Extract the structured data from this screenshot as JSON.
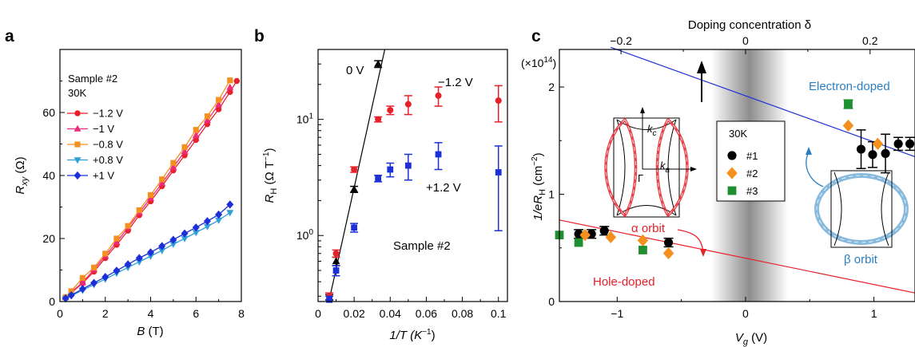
{
  "figure": {
    "panel_letters": [
      "a",
      "b",
      "c"
    ]
  },
  "chart_data": [
    {
      "panel": "a",
      "type": "line",
      "xlabel_var": "B",
      "xlabel_unit": " (T)",
      "ylabel_var": "R",
      "ylabel_sub": "xy",
      "ylabel_unit": " (Ω)",
      "xlim": [
        0,
        8
      ],
      "ylim": [
        0,
        80
      ],
      "xticks": [
        0,
        2,
        4,
        6,
        8
      ],
      "yticks": [
        0,
        20,
        40,
        60
      ],
      "legend_title": [
        "Sample #2",
        "30K"
      ],
      "legend_position": "top-left",
      "series": [
        {
          "name": "−1.2 V",
          "color": "#e8202a",
          "marker": "circle",
          "x": [
            0.25,
            0.5,
            1,
            1.5,
            2,
            2.5,
            3,
            3.5,
            4,
            4.5,
            5,
            5.5,
            6,
            6.5,
            7,
            7.5,
            7.8
          ],
          "y": [
            1.3,
            2.8,
            5.8,
            9.5,
            13.8,
            18,
            22.5,
            27.4,
            31.8,
            36.6,
            41.6,
            46.4,
            51.3,
            56.3,
            61,
            66.5,
            70
          ]
        },
        {
          "name": "−1 V",
          "color": "#ee2a7b",
          "marker": "triangle-up",
          "x": [
            0.25,
            0.5,
            1,
            1.5,
            2,
            2.5,
            3,
            3.5,
            4,
            4.5,
            5,
            5.5,
            6,
            6.5,
            7,
            7.5
          ],
          "y": [
            1.3,
            3,
            6,
            10.2,
            14.5,
            18.8,
            23.5,
            28.2,
            32.8,
            37.5,
            42.6,
            47.6,
            52.7,
            57.5,
            62.5,
            68
          ]
        },
        {
          "name": "−0.8 V",
          "color": "#f4901e",
          "marker": "square",
          "x": [
            0.25,
            0.5,
            1,
            1.5,
            2,
            2.5,
            3,
            3.5,
            4,
            4.5,
            5,
            5.5,
            6,
            6.5,
            7,
            7.5
          ],
          "y": [
            1.4,
            3.3,
            7.5,
            10.8,
            15.2,
            20,
            24,
            29,
            33.8,
            38.8,
            44,
            49,
            54.5,
            58.8,
            64,
            70.2
          ]
        },
        {
          "name": "+0.8 V",
          "color": "#2f9fd8",
          "marker": "triangle-down",
          "x": [
            0.25,
            0.5,
            1,
            1.5,
            2,
            2.5,
            3,
            3.5,
            4,
            4.5,
            5,
            5.5,
            6,
            6.5,
            7,
            7.5
          ],
          "y": [
            0.9,
            1.8,
            3.6,
            5.4,
            7.1,
            9,
            10.8,
            12.6,
            14.4,
            16.2,
            18.2,
            20,
            21.9,
            23.8,
            25.8,
            28.2
          ]
        },
        {
          "name": "+1 V",
          "color": "#1d2fd6",
          "marker": "diamond",
          "x": [
            0.25,
            0.5,
            1,
            1.5,
            2,
            2.5,
            3,
            3.5,
            4,
            4.5,
            5,
            5.5,
            6,
            6.5,
            7,
            7.5
          ],
          "y": [
            1,
            2,
            4,
            5.9,
            7.8,
            9.8,
            11.8,
            13.8,
            15.6,
            17.6,
            19.6,
            21.6,
            23.5,
            25.5,
            27.6,
            30.8
          ]
        }
      ]
    },
    {
      "panel": "b",
      "type": "scatter",
      "xlabel": "1/T (K",
      "xlabel_sup": "−1",
      "xlabel_tail": ")",
      "ylabel_var": "R",
      "ylabel_sub": "H",
      "ylabel_unit": " (Ω T",
      "ylabel_sup": "−1",
      "ylabel_tail": ")",
      "xlim": [
        0,
        0.105
      ],
      "ylim_log": [
        0.27,
        40
      ],
      "yscale": "log",
      "xticks": [
        0,
        0.02,
        0.04,
        0.06,
        0.08,
        0.1
      ],
      "xtick_labels": [
        "0",
        "0.02",
        "0.04",
        "0.06",
        "0.08",
        "0.1"
      ],
      "yticks_major": [
        1,
        10
      ],
      "ytick_labels": [
        {
          "base": "10",
          "exp": "0"
        },
        {
          "base": "10",
          "exp": "1"
        }
      ],
      "annotations": {
        "zero": "0 V",
        "neg": "−1.2 V",
        "pos": "+1.2 V",
        "sample": "Sample #2"
      },
      "fit_line": {
        "x": [
          0.006,
          0.037
        ],
        "y": [
          0.27,
          40
        ]
      },
      "series": [
        {
          "name": "0 V",
          "color": "#000000",
          "marker": "triangle-up",
          "x": [
            0.00625,
            0.01,
            0.02,
            0.0333
          ],
          "y": [
            0.29,
            0.6,
            2.5,
            30
          ],
          "err": [
            0.02,
            0.05,
            0.15,
            2
          ]
        },
        {
          "name": "−1.2 V",
          "color": "#e8202a",
          "marker": "circle",
          "x": [
            0.00625,
            0.01,
            0.02,
            0.0333,
            0.04,
            0.05,
            0.0667,
            0.1
          ],
          "y": [
            0.3,
            0.7,
            3.7,
            10,
            12,
            13.5,
            16,
            14.5
          ],
          "err": [
            0.02,
            0.05,
            0.2,
            0.5,
            1,
            2.5,
            3,
            5
          ]
        },
        {
          "name": "+1.2 V",
          "color": "#1d2fd6",
          "marker": "square",
          "x": [
            0.00625,
            0.01,
            0.02,
            0.0333,
            0.04,
            0.05,
            0.0667,
            0.1
          ],
          "y": [
            0.28,
            0.5,
            1.17,
            3.1,
            3.7,
            4,
            5,
            3.5
          ],
          "err": [
            0.02,
            0.05,
            0.1,
            0.2,
            0.5,
            1,
            1.3,
            2.4
          ]
        }
      ]
    },
    {
      "panel": "c",
      "type": "scatter",
      "xlabel_var": "V",
      "xlabel_sub": "g",
      "xlabel_unit": " (V)",
      "ylabel": "1/eR",
      "ylabel_sub": "H",
      "ylabel_unit": " (cm",
      "ylabel_sup": "−2",
      "ylabel_tail": ")",
      "ymultiplier": "(×10",
      "ymultiplier_sup": "14",
      "ymultiplier_tail": ")",
      "top_label": "Doping concentration δ",
      "xlim": [
        -1.45,
        1.32
      ],
      "ylim": [
        0,
        2.35
      ],
      "xticks": [
        -1,
        0,
        1
      ],
      "xtick_labels": [
        "−1",
        "0",
        "1"
      ],
      "yticks": [
        0,
        1,
        2
      ],
      "top_ticks": [
        -0.2,
        0,
        0.2
      ],
      "top_tick_labels": [
        "−0.2",
        "0",
        "0.2"
      ],
      "legend_title": "30K",
      "annotations": {
        "electron": "Electron-doped",
        "hole": "Hole-doped",
        "alpha": "α orbit",
        "beta": "β orbit",
        "kc": "k",
        "kc_sub": "c",
        "ka": "k",
        "ka_sub": "a",
        "gamma": "Γ"
      },
      "electron_line": {
        "x": [
          -1.05,
          1.32
        ],
        "y": [
          2.37,
          1.35
        ]
      },
      "hole_line": {
        "x": [
          -1.45,
          1.32
        ],
        "y": [
          0.76,
          0.08
        ]
      },
      "series": [
        {
          "name": "#1",
          "color": "#000000",
          "marker": "circle",
          "x": [
            -1.3,
            -1.2,
            -1.1,
            -0.6,
            0.9,
            0.99,
            1.09,
            1.19,
            1.28
          ],
          "y": [
            0.63,
            0.63,
            0.66,
            0.55,
            1.42,
            1.37,
            1.38,
            1.47,
            1.47
          ],
          "err": [
            0.04,
            0.04,
            0.04,
            0.04,
            0.18,
            0.12,
            0.18,
            0.06,
            0.06
          ]
        },
        {
          "name": "#2",
          "color": "#f4901e",
          "marker": "diamond",
          "x": [
            -1.25,
            -1.05,
            -0.8,
            -0.6,
            0.8,
            1.03
          ],
          "y": [
            0.62,
            0.6,
            0.57,
            0.45,
            1.64,
            1.47
          ],
          "err": [
            0,
            0,
            0,
            0,
            0,
            0
          ]
        },
        {
          "name": "#3",
          "color": "#1f8f2f",
          "marker": "square",
          "x": [
            -1.45,
            -1.3,
            -0.8,
            0.8
          ],
          "y": [
            0.62,
            0.55,
            0.48,
            1.84
          ],
          "err": [
            0,
            0,
            0,
            0.04
          ]
        }
      ]
    }
  ]
}
